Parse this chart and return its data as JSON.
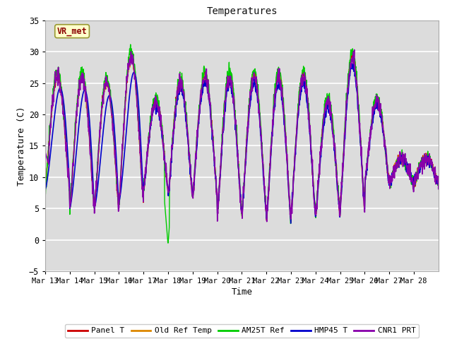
{
  "title": "Temperatures",
  "xlabel": "Time",
  "ylabel": "Temperature (C)",
  "ylim": [
    -5,
    35
  ],
  "annotation_text": "VR_met",
  "bg_color": "#dcdcdc",
  "fig_color": "#ffffff",
  "grid_color": "#ffffff",
  "legend_labels": [
    "Panel T",
    "Old Ref Temp",
    "AM25T Ref",
    "HMP45 T",
    "CNR1 PRT"
  ],
  "line_colors": [
    "#cc0000",
    "#dd8800",
    "#00cc00",
    "#0000cc",
    "#8800aa"
  ],
  "line_widths": [
    1.0,
    1.0,
    1.0,
    1.2,
    1.2
  ],
  "xtick_labels": [
    "Mar 13",
    "Mar 14",
    "Mar 15",
    "Mar 16",
    "Mar 17",
    "Mar 18",
    "Mar 19",
    "Mar 20",
    "Mar 21",
    "Mar 22",
    "Mar 23",
    "Mar 24",
    "Mar 25",
    "Mar 26",
    "Mar 27",
    "Mar 28"
  ],
  "num_days": 16,
  "day_maxes": [
    26,
    26,
    25,
    29,
    22,
    25,
    26,
    26,
    26,
    26,
    26,
    22,
    29,
    22,
    13,
    13
  ],
  "day_mins": [
    8,
    5,
    5,
    6,
    8,
    7,
    7,
    4,
    4,
    3,
    4,
    4,
    5,
    9,
    9,
    9
  ]
}
